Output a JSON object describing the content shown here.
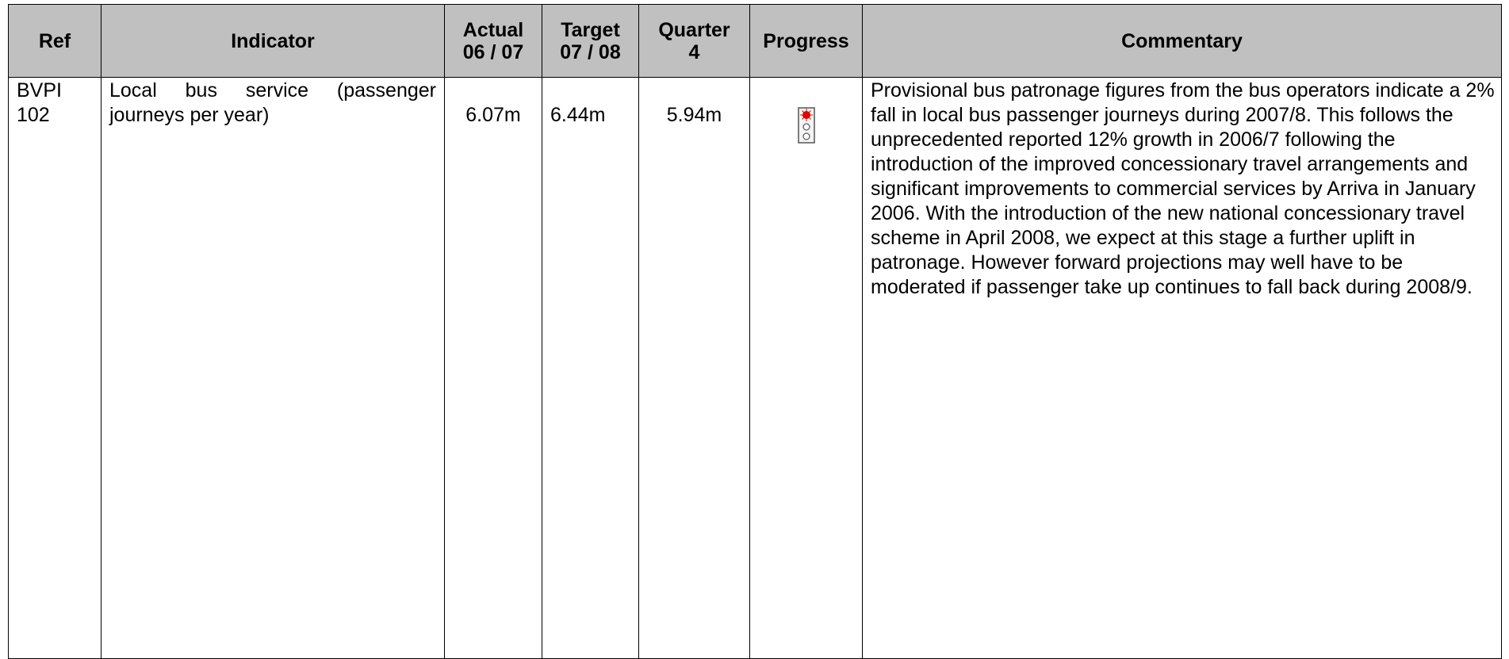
{
  "table": {
    "header": [
      "Ref",
      "Indicator",
      "Actual\n06 / 07",
      "Target\n07 / 08",
      "Quarter\n4",
      "Progress",
      "Commentary"
    ],
    "rows": [
      [
        "BVPI\n102",
        "Local bus service (passenger journeys per year)",
        "6.07m",
        "6.44m",
        "5.94m",
        "",
        "Provisional bus patronage figures from the bus operators indicate a 2% fall in local bus passenger journeys during 2007/8. This follows the unprecedented reported 12% growth in 2006/7 following the introduction of the improved concessionary travel arrangements and significant improvements to commercial services by Arriva in January 2006. With the introduction of the new national concessionary travel scheme in April 2008, we expect at this stage a further uplift in patronage. However forward projections may well have to be moderated if passenger take up continues to fall back during 2008/9."
      ]
    ]
  }
}
